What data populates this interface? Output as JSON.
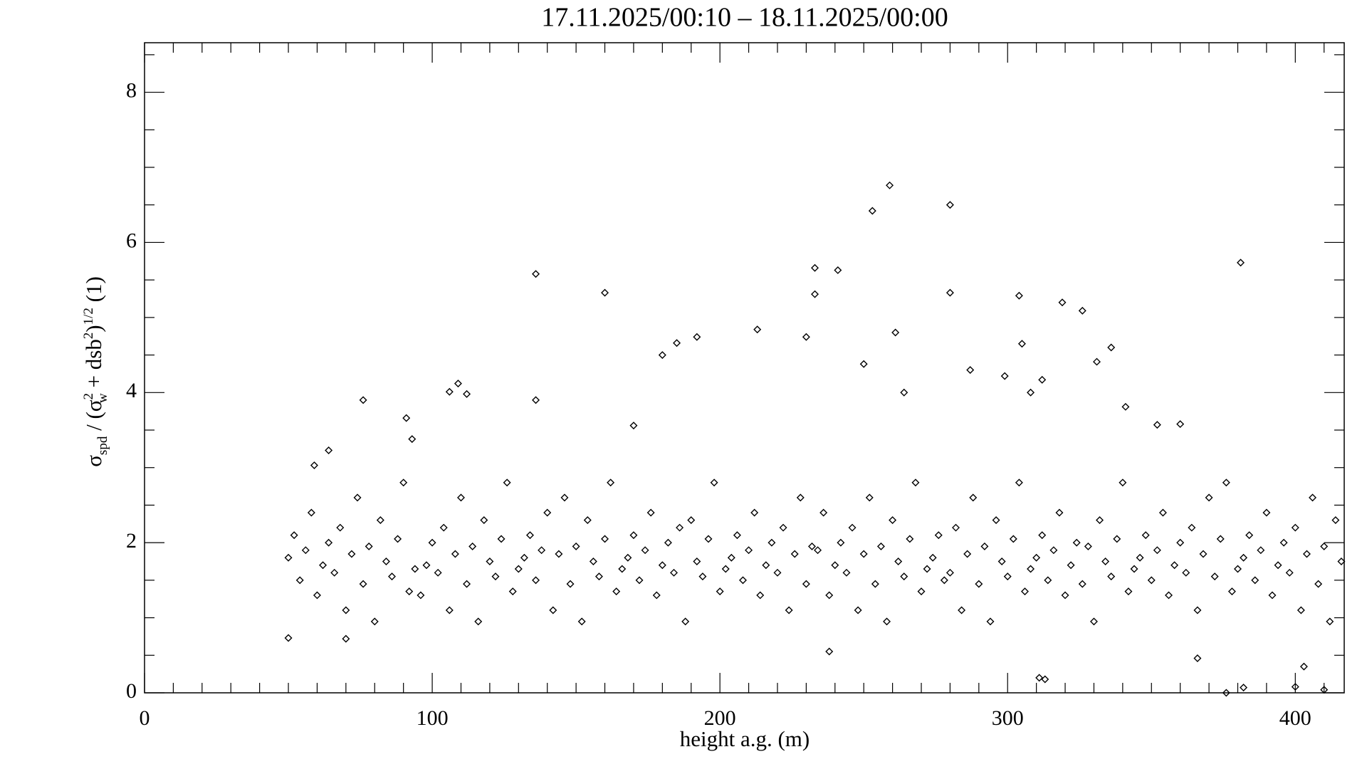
{
  "chart_data": {
    "type": "scatter",
    "title": "17.11.2025/00:10 – 18.11.2025/00:00",
    "x_label": "height a.g. (m)",
    "y_label": [
      "σ",
      "spd",
      " / (σ",
      "2",
      "w",
      " + dsb",
      "2",
      ")",
      "1/2",
      " (1)"
    ],
    "xlim": [
      0,
      417
    ],
    "ylim": [
      0,
      8.66
    ],
    "xticks": [
      0,
      100,
      200,
      300,
      400
    ],
    "yticks": [
      0,
      2,
      4,
      6,
      8
    ],
    "color": "#000000",
    "x": [
      50,
      52,
      54,
      56,
      58,
      60,
      62,
      64,
      66,
      68,
      70,
      72,
      74,
      76,
      78,
      80,
      82,
      84,
      86,
      88,
      90,
      92,
      94,
      96,
      98,
      100,
      102,
      104,
      106,
      108,
      110,
      112,
      114,
      116,
      118,
      120,
      122,
      124,
      126,
      128,
      130,
      132,
      134,
      136,
      138,
      140,
      142,
      144,
      146,
      148,
      150,
      152,
      154,
      156,
      158,
      160,
      162,
      164,
      166,
      168,
      170,
      172,
      174,
      176,
      178,
      180,
      182,
      184,
      186,
      188,
      190,
      192,
      194,
      196,
      198,
      200,
      202,
      204,
      206,
      208,
      210,
      212,
      214,
      216,
      218,
      220,
      222,
      224,
      226,
      228,
      230,
      232,
      234,
      236,
      238,
      240,
      242,
      244,
      246,
      248,
      250,
      252,
      254,
      256,
      258,
      260,
      262,
      264,
      266,
      268,
      270,
      272,
      274,
      276,
      278,
      280,
      282,
      284,
      286,
      288,
      290,
      292,
      294,
      296,
      298,
      300,
      302,
      304,
      306,
      308,
      310,
      312,
      314,
      316,
      318,
      320,
      322,
      324,
      326,
      328,
      330,
      332,
      334,
      336,
      338,
      340,
      342,
      344,
      346,
      348,
      350,
      352,
      354,
      356,
      358,
      360,
      362,
      364,
      366,
      368,
      370,
      372,
      374,
      376,
      378,
      380,
      382,
      384,
      386,
      388,
      390,
      392,
      394,
      396,
      398,
      400,
      402,
      404,
      406,
      408,
      410,
      412,
      414,
      416,
      136,
      160,
      213,
      233,
      233,
      241,
      253,
      259,
      280,
      280,
      304,
      319,
      326,
      381,
      192,
      185,
      180,
      230,
      261,
      305,
      336,
      331,
      76,
      106,
      109,
      112,
      136,
      91,
      238,
      311,
      313,
      376,
      382,
      400,
      410,
      403,
      366,
      250,
      264,
      287,
      299,
      308,
      312,
      341,
      352,
      360,
      170,
      93,
      59,
      64,
      50,
      70
    ],
    "values": [
      1.8,
      2.1,
      1.5,
      1.9,
      2.4,
      1.3,
      1.7,
      2.0,
      1.6,
      2.2,
      1.1,
      1.85,
      2.6,
      1.45,
      1.95,
      0.95,
      2.3,
      1.75,
      1.55,
      2.05,
      2.8,
      1.35,
      1.65,
      1.3,
      1.7,
      2.0,
      1.6,
      2.2,
      1.1,
      1.85,
      2.6,
      1.45,
      1.95,
      0.95,
      2.3,
      1.75,
      1.55,
      2.05,
      2.8,
      1.35,
      1.65,
      1.8,
      2.1,
      1.5,
      1.9,
      2.4,
      1.1,
      1.85,
      2.6,
      1.45,
      1.95,
      0.95,
      2.3,
      1.75,
      1.55,
      2.05,
      2.8,
      1.35,
      1.65,
      1.8,
      2.1,
      1.5,
      1.9,
      2.4,
      1.3,
      1.7,
      2.0,
      1.6,
      2.2,
      0.95,
      2.3,
      1.75,
      1.55,
      2.05,
      2.8,
      1.35,
      1.65,
      1.8,
      2.1,
      1.5,
      1.9,
      2.4,
      1.3,
      1.7,
      2.0,
      1.6,
      2.2,
      1.1,
      1.85,
      2.6,
      1.45,
      1.95,
      1.9,
      2.4,
      1.3,
      1.7,
      2.0,
      1.6,
      2.2,
      1.1,
      1.85,
      2.6,
      1.45,
      1.95,
      0.95,
      2.3,
      1.75,
      1.55,
      2.05,
      2.8,
      1.35,
      1.65,
      1.8,
      2.1,
      1.5,
      1.6,
      2.2,
      1.1,
      1.85,
      2.6,
      1.45,
      1.95,
      0.95,
      2.3,
      1.75,
      1.55,
      2.05,
      2.8,
      1.35,
      1.65,
      1.8,
      2.1,
      1.5,
      1.9,
      2.4,
      1.3,
      1.7,
      2.0,
      1.45,
      1.95,
      0.95,
      2.3,
      1.75,
      1.55,
      2.05,
      2.8,
      1.35,
      1.65,
      1.8,
      2.1,
      1.5,
      1.9,
      2.4,
      1.3,
      1.7,
      2.0,
      1.6,
      2.2,
      1.1,
      1.85,
      2.6,
      1.55,
      2.05,
      2.8,
      1.35,
      1.65,
      1.8,
      2.1,
      1.5,
      1.9,
      2.4,
      1.3,
      1.7,
      2.0,
      1.6,
      2.2,
      1.1,
      1.85,
      2.6,
      1.45,
      1.95,
      0.95,
      2.3,
      1.75,
      5.58,
      5.33,
      4.84,
      5.66,
      5.31,
      5.63,
      6.42,
      6.76,
      6.5,
      5.33,
      5.29,
      5.2,
      5.09,
      5.73,
      4.74,
      4.66,
      4.5,
      4.74,
      4.8,
      4.65,
      4.6,
      4.41,
      3.9,
      4.01,
      4.12,
      3.98,
      3.9,
      3.66,
      0.55,
      0.2,
      0.18,
      0.0,
      0.07,
      0.08,
      0.04,
      0.35,
      0.46,
      4.38,
      4.0,
      4.3,
      4.22,
      4.0,
      4.17,
      3.81,
      3.57,
      3.58,
      3.56,
      3.38,
      3.03,
      3.23,
      0.73,
      0.72
    ]
  }
}
